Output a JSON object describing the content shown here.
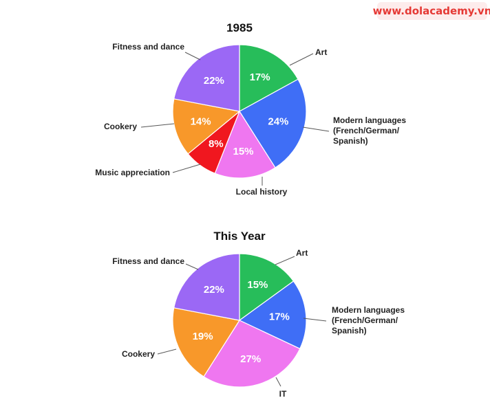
{
  "watermark": "www.dolacademy.vn",
  "colors": {
    "art": "#27bd5a",
    "modern": "#3f6ef6",
    "local": "#ef77f0",
    "music": "#f0171f",
    "cookery": "#f8982a",
    "fitness": "#9b68f5",
    "it": "#ef77f0"
  },
  "chart_data": [
    {
      "type": "pie",
      "title": "1985",
      "slices": [
        {
          "label": [
            "Art"
          ],
          "value": 17,
          "display": "17%",
          "color_key": "art"
        },
        {
          "label": [
            "Modern languages",
            "(French/German/",
            "Spanish)"
          ],
          "value": 24,
          "display": "24%",
          "color_key": "modern"
        },
        {
          "label": [
            "Local history"
          ],
          "value": 15,
          "display": "15%",
          "color_key": "local"
        },
        {
          "label": [
            "Music appreciation"
          ],
          "value": 8,
          "display": "8%",
          "color_key": "music"
        },
        {
          "label": [
            "Cookery"
          ],
          "value": 14,
          "display": "14%",
          "color_key": "cookery"
        },
        {
          "label": [
            "Fitness and dance"
          ],
          "value": 22,
          "display": "22%",
          "color_key": "fitness"
        }
      ]
    },
    {
      "type": "pie",
      "title": "This Year",
      "slices": [
        {
          "label": [
            "Art"
          ],
          "value": 15,
          "display": "15%",
          "color_key": "art"
        },
        {
          "label": [
            "Modern languages",
            "(French/German/",
            "Spanish)"
          ],
          "value": 17,
          "display": "17%",
          "color_key": "modern"
        },
        {
          "label": [
            "IT"
          ],
          "value": 27,
          "display": "27%",
          "color_key": "it"
        },
        {
          "label": [
            "Cookery"
          ],
          "value": 19,
          "display": "19%",
          "color_key": "cookery"
        },
        {
          "label": [
            "Fitness and dance"
          ],
          "value": 22,
          "display": "22%",
          "color_key": "fitness"
        }
      ]
    }
  ]
}
